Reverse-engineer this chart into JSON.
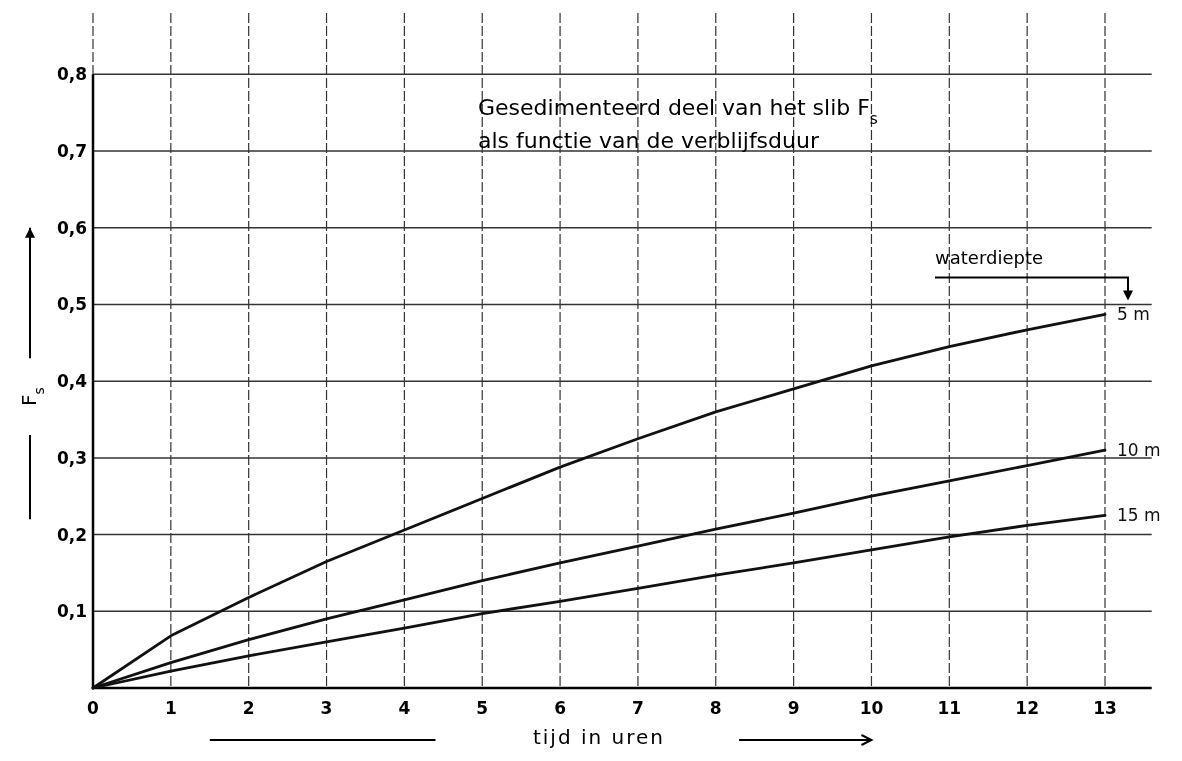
{
  "chart_data": {
    "type": "line",
    "title": "Gesedimenteerd deel van het slib F$_{s}$",
    "subtitle": "als functie van de verblijfsduur",
    "xlabel": "tijd in uren",
    "ylabel": "F$_{s}$",
    "legend_title": "waterdiepte",
    "x": [
      0,
      1,
      2,
      3,
      4,
      5,
      6,
      7,
      8,
      9,
      10,
      11,
      12,
      13
    ],
    "series": [
      {
        "name": "5 m",
        "color": "#111111",
        "values": [
          0,
          0.068,
          0.118,
          0.165,
          0.206,
          0.247,
          0.288,
          0.325,
          0.36,
          0.39,
          0.42,
          0.445,
          0.467,
          0.487
        ]
      },
      {
        "name": "10 m",
        "color": "#111111",
        "values": [
          0,
          0.033,
          0.063,
          0.09,
          0.115,
          0.14,
          0.163,
          0.185,
          0.207,
          0.228,
          0.25,
          0.27,
          0.29,
          0.31
        ]
      },
      {
        "name": "15 m",
        "color": "#111111",
        "values": [
          0,
          0.022,
          0.042,
          0.06,
          0.078,
          0.097,
          0.113,
          0.13,
          0.147,
          0.163,
          0.18,
          0.197,
          0.212,
          0.225
        ]
      }
    ],
    "xlim": [
      0,
      13.6
    ],
    "xticks": [
      0,
      1,
      2,
      3,
      4,
      5,
      6,
      7,
      8,
      9,
      10,
      11,
      12,
      13
    ],
    "ylim": [
      0,
      0.88
    ],
    "yticks": [
      {
        "value": 0.1,
        "label": "0,1"
      },
      {
        "value": 0.2,
        "label": "0,2"
      },
      {
        "value": 0.3,
        "label": "0,3"
      },
      {
        "value": 0.4,
        "label": "0,4"
      },
      {
        "value": 0.5,
        "label": "0,5"
      },
      {
        "value": 0.6,
        "label": "0,6"
      },
      {
        "value": 0.7,
        "label": "0,7"
      },
      {
        "value": 0.8,
        "label": "0,8"
      }
    ],
    "grid": true,
    "legend": "right",
    "marker": "none",
    "line_style": "solid"
  }
}
